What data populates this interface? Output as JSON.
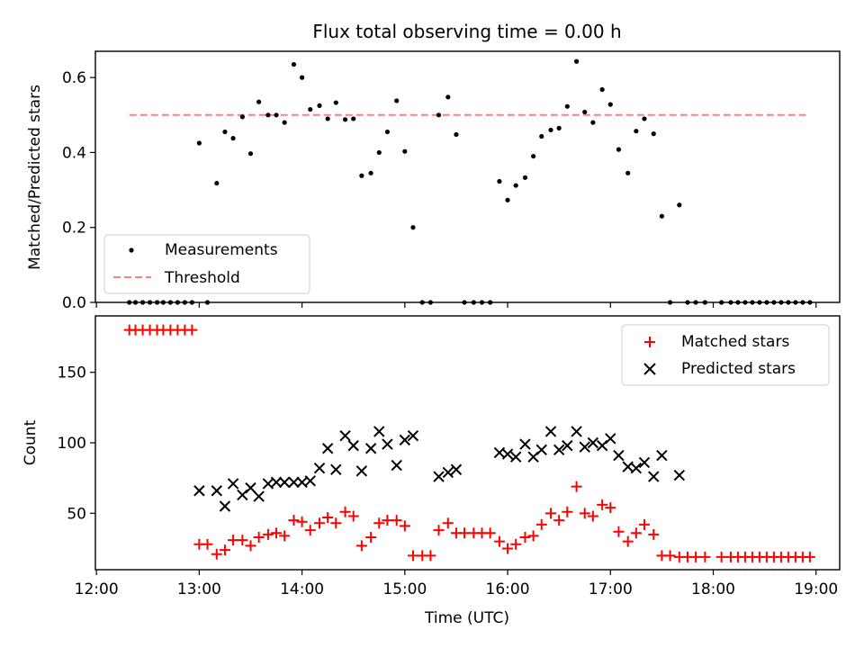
{
  "chart_data": [
    {
      "type": "scatter",
      "title": "Flux total observing time = 0.00 h",
      "xlabel": "",
      "ylabel": "Matched/Predicted stars",
      "xlim_hours": [
        11.99,
        19.23
      ],
      "ylim": [
        0,
        0.67
      ],
      "yticks": [
        0.0,
        0.2,
        0.4,
        0.6
      ],
      "ytick_labels": [
        "0.0",
        "0.2",
        "0.4",
        "0.6"
      ],
      "legend_position": "lower-left",
      "series": [
        {
          "name": "Measurements",
          "color": "#000000",
          "marker": "dot",
          "points": [
            [
              12.32,
              0
            ],
            [
              12.38,
              0
            ],
            [
              12.45,
              0
            ],
            [
              12.52,
              0
            ],
            [
              12.59,
              0
            ],
            [
              12.65,
              0
            ],
            [
              12.72,
              0
            ],
            [
              12.79,
              0
            ],
            [
              12.86,
              0
            ],
            [
              12.93,
              0
            ],
            [
              13.0,
              0.425
            ],
            [
              13.08,
              0
            ],
            [
              13.17,
              0.318
            ],
            [
              13.25,
              0.455
            ],
            [
              13.33,
              0.438
            ],
            [
              13.42,
              0.495
            ],
            [
              13.5,
              0.397
            ],
            [
              13.58,
              0.535
            ],
            [
              13.67,
              0.5
            ],
            [
              13.75,
              0.5
            ],
            [
              13.83,
              0.48
            ],
            [
              13.92,
              0.635
            ],
            [
              14.0,
              0.6
            ],
            [
              14.08,
              0.515
            ],
            [
              14.17,
              0.525
            ],
            [
              14.25,
              0.49
            ],
            [
              14.33,
              0.533
            ],
            [
              14.42,
              0.488
            ],
            [
              14.5,
              0.49
            ],
            [
              14.58,
              0.338
            ],
            [
              14.67,
              0.345
            ],
            [
              14.75,
              0.4
            ],
            [
              14.83,
              0.455
            ],
            [
              14.92,
              0.538
            ],
            [
              15.0,
              0.403
            ],
            [
              15.08,
              0.2
            ],
            [
              15.17,
              0
            ],
            [
              15.25,
              0
            ],
            [
              15.33,
              0.5
            ],
            [
              15.42,
              0.548
            ],
            [
              15.5,
              0.448
            ],
            [
              15.58,
              0
            ],
            [
              15.67,
              0
            ],
            [
              15.75,
              0
            ],
            [
              15.83,
              0
            ],
            [
              15.92,
              0.323
            ],
            [
              16.0,
              0.273
            ],
            [
              16.08,
              0.312
            ],
            [
              16.17,
              0.333
            ],
            [
              16.25,
              0.39
            ],
            [
              16.33,
              0.443
            ],
            [
              16.42,
              0.46
            ],
            [
              16.5,
              0.465
            ],
            [
              16.58,
              0.523
            ],
            [
              16.67,
              0.643
            ],
            [
              16.75,
              0.508
            ],
            [
              16.83,
              0.48
            ],
            [
              16.92,
              0.568
            ],
            [
              17.0,
              0.528
            ],
            [
              17.08,
              0.408
            ],
            [
              17.17,
              0.345
            ],
            [
              17.25,
              0.457
            ],
            [
              17.33,
              0.49
            ],
            [
              17.42,
              0.45
            ],
            [
              17.5,
              0.23
            ],
            [
              17.58,
              0
            ],
            [
              17.67,
              0.26
            ],
            [
              17.75,
              0
            ],
            [
              17.83,
              0
            ],
            [
              17.92,
              0
            ],
            [
              18.08,
              0
            ],
            [
              18.17,
              0
            ],
            [
              18.24,
              0
            ],
            [
              18.31,
              0
            ],
            [
              18.38,
              0
            ],
            [
              18.45,
              0
            ],
            [
              18.52,
              0
            ],
            [
              18.59,
              0
            ],
            [
              18.66,
              0
            ],
            [
              18.73,
              0
            ],
            [
              18.8,
              0
            ],
            [
              18.87,
              0
            ],
            [
              18.94,
              0
            ]
          ]
        },
        {
          "name": "Threshold",
          "color": "#ff7f7f",
          "style": "dashed",
          "x_range_hours": [
            12.32,
            18.9
          ],
          "y": 0.5
        }
      ]
    },
    {
      "type": "scatter",
      "title": "",
      "xlabel": "Time (UTC)",
      "ylabel": "Count",
      "xlim_hours": [
        11.99,
        19.23
      ],
      "ylim": [
        10,
        190
      ],
      "yticks": [
        50,
        100,
        150
      ],
      "ytick_labels": [
        "50",
        "100",
        "150"
      ],
      "xticks_hours": [
        12,
        13,
        14,
        15,
        16,
        17,
        18,
        19
      ],
      "xtick_labels": [
        "12:00",
        "13:00",
        "14:00",
        "15:00",
        "16:00",
        "17:00",
        "18:00",
        "19:00"
      ],
      "legend_position": "upper-right",
      "series": [
        {
          "name": "Matched stars",
          "color": "#ff0000",
          "marker": "plus",
          "points": [
            [
              12.32,
              180
            ],
            [
              12.38,
              180
            ],
            [
              12.45,
              180
            ],
            [
              12.52,
              180
            ],
            [
              12.59,
              180
            ],
            [
              12.65,
              180
            ],
            [
              12.72,
              180
            ],
            [
              12.79,
              180
            ],
            [
              12.86,
              180
            ],
            [
              12.93,
              180
            ],
            [
              13.0,
              28
            ],
            [
              13.08,
              28
            ],
            [
              13.17,
              21
            ],
            [
              13.25,
              24
            ],
            [
              13.33,
              31
            ],
            [
              13.42,
              31
            ],
            [
              13.5,
              27
            ],
            [
              13.58,
              33
            ],
            [
              13.67,
              35
            ],
            [
              13.75,
              36
            ],
            [
              13.83,
              34
            ],
            [
              13.92,
              45
            ],
            [
              14.0,
              44
            ],
            [
              14.08,
              38
            ],
            [
              14.17,
              43
            ],
            [
              14.25,
              47
            ],
            [
              14.33,
              43
            ],
            [
              14.42,
              51
            ],
            [
              14.5,
              48
            ],
            [
              14.58,
              27
            ],
            [
              14.67,
              33
            ],
            [
              14.75,
              43
            ],
            [
              14.83,
              45
            ],
            [
              14.92,
              45
            ],
            [
              15.0,
              41
            ],
            [
              15.08,
              20
            ],
            [
              15.17,
              20
            ],
            [
              15.25,
              20
            ],
            [
              15.33,
              38
            ],
            [
              15.42,
              43
            ],
            [
              15.5,
              36
            ],
            [
              15.58,
              36
            ],
            [
              15.67,
              36
            ],
            [
              15.75,
              36
            ],
            [
              15.83,
              36
            ],
            [
              15.92,
              30
            ],
            [
              16.0,
              25
            ],
            [
              16.08,
              28
            ],
            [
              16.17,
              33
            ],
            [
              16.25,
              34
            ],
            [
              16.33,
              42
            ],
            [
              16.42,
              50
            ],
            [
              16.5,
              45
            ],
            [
              16.58,
              51
            ],
            [
              16.67,
              69
            ],
            [
              16.75,
              50
            ],
            [
              16.83,
              48
            ],
            [
              16.92,
              56
            ],
            [
              17.0,
              54
            ],
            [
              17.08,
              37
            ],
            [
              17.17,
              30
            ],
            [
              17.25,
              36
            ],
            [
              17.33,
              42
            ],
            [
              17.42,
              35
            ],
            [
              17.5,
              20
            ],
            [
              17.58,
              20
            ],
            [
              17.67,
              19
            ],
            [
              17.75,
              19
            ],
            [
              17.83,
              19
            ],
            [
              17.92,
              19
            ],
            [
              18.08,
              19
            ],
            [
              18.17,
              19
            ],
            [
              18.24,
              19
            ],
            [
              18.31,
              19
            ],
            [
              18.38,
              19
            ],
            [
              18.45,
              19
            ],
            [
              18.52,
              19
            ],
            [
              18.59,
              19
            ],
            [
              18.66,
              19
            ],
            [
              18.73,
              19
            ],
            [
              18.8,
              19
            ],
            [
              18.87,
              19
            ],
            [
              18.94,
              19
            ]
          ]
        },
        {
          "name": "Predicted stars",
          "color": "#000000",
          "marker": "cross",
          "points": [
            [
              13.0,
              66
            ],
            [
              13.17,
              66
            ],
            [
              13.25,
              55
            ],
            [
              13.33,
              71
            ],
            [
              13.42,
              63
            ],
            [
              13.5,
              68
            ],
            [
              13.58,
              62
            ],
            [
              13.67,
              71
            ],
            [
              13.75,
              72
            ],
            [
              13.83,
              72
            ],
            [
              13.92,
              72
            ],
            [
              14.0,
              72
            ],
            [
              14.08,
              73
            ],
            [
              14.17,
              82
            ],
            [
              14.25,
              96
            ],
            [
              14.33,
              81
            ],
            [
              14.42,
              105
            ],
            [
              14.5,
              98
            ],
            [
              14.58,
              80
            ],
            [
              14.67,
              96
            ],
            [
              14.75,
              108
            ],
            [
              14.83,
              99
            ],
            [
              14.92,
              84
            ],
            [
              15.0,
              102
            ],
            [
              15.08,
              105
            ],
            [
              15.33,
              76
            ],
            [
              15.42,
              79
            ],
            [
              15.5,
              81
            ],
            [
              15.92,
              93
            ],
            [
              16.0,
              92
            ],
            [
              16.08,
              90
            ],
            [
              16.17,
              99
            ],
            [
              16.25,
              90
            ],
            [
              16.33,
              95
            ],
            [
              16.42,
              108
            ],
            [
              16.5,
              95
            ],
            [
              16.58,
              98
            ],
            [
              16.67,
              108
            ],
            [
              16.75,
              97
            ],
            [
              16.83,
              100
            ],
            [
              16.92,
              98
            ],
            [
              17.0,
              103
            ],
            [
              17.08,
              91
            ],
            [
              17.17,
              83
            ],
            [
              17.25,
              82
            ],
            [
              17.33,
              86
            ],
            [
              17.42,
              76
            ],
            [
              17.5,
              91
            ],
            [
              17.67,
              77
            ]
          ]
        }
      ]
    }
  ]
}
